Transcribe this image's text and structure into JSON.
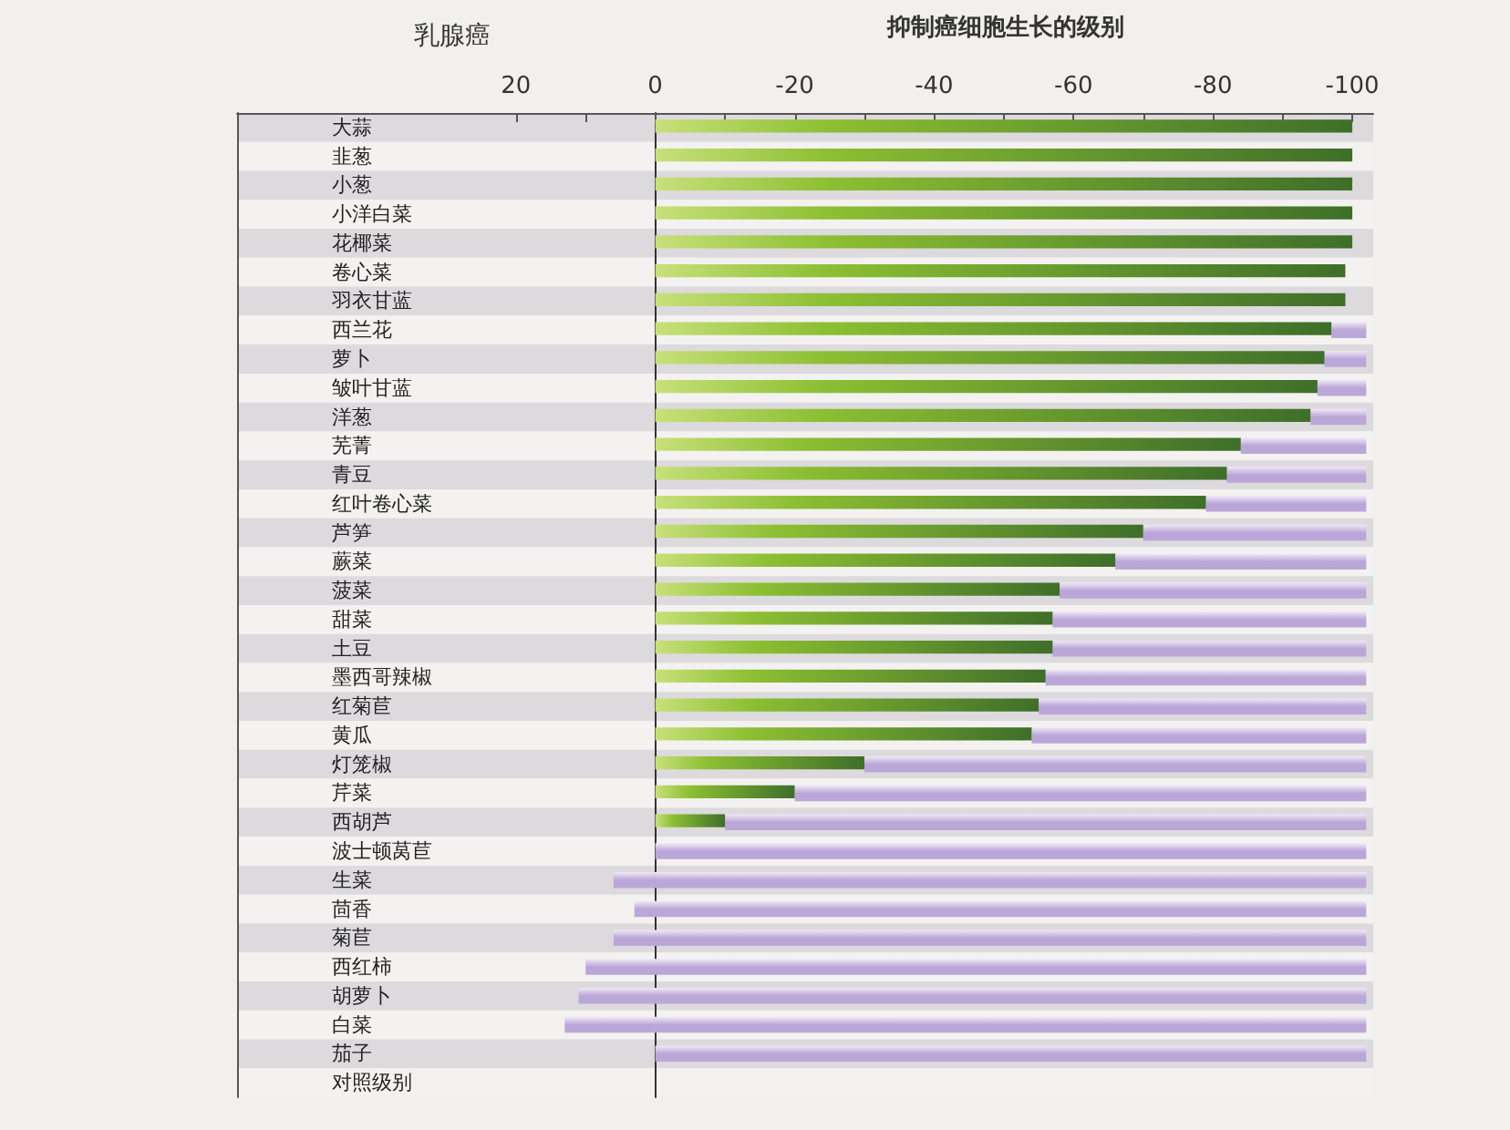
{
  "chart_data": {
    "type": "bar",
    "orientation": "horizontal",
    "title": "乳腺癌",
    "xlabel": "抑制癌细胞生长的级别",
    "categories": [
      "大蒜",
      "韭葱",
      "小葱",
      "小洋白菜",
      "花椰菜",
      "卷心菜",
      "羽衣甘蓝",
      "西兰花",
      "萝卜",
      "皱叶甘蓝",
      "洋葱",
      "芜菁",
      "青豆",
      "红叶卷心菜",
      "芦笋",
      "蕨菜",
      "菠菜",
      "甜菜",
      "土豆",
      "墨西哥辣椒",
      "红菊苣",
      "黄瓜",
      "灯笼椒",
      "芹菜",
      "西胡芦",
      "波士顿莴苣",
      "生菜",
      "茴香",
      "菊苣",
      "西红柿",
      "胡萝卜",
      "白菜",
      "茄子",
      "对照级别"
    ],
    "series": [
      {
        "color": "#3f6e2a",
        "values": [
          -100,
          -100,
          -100,
          -100,
          -100,
          -99,
          -99,
          -97,
          -96,
          -95,
          -94,
          -84,
          -82,
          -79,
          -70,
          -66,
          -58,
          -57,
          -57,
          -56,
          -55,
          -54,
          -30,
          -20,
          -10,
          null,
          null,
          null,
          null,
          null,
          null,
          null,
          null,
          null
        ]
      },
      {
        "color": "#bba6d8",
        "base": [
          null,
          null,
          null,
          null,
          null,
          null,
          null,
          -97,
          -96,
          -95,
          -94,
          -84,
          -82,
          -79,
          -70,
          -66,
          -58,
          -57,
          -57,
          -56,
          -55,
          -54,
          -30,
          -20,
          -10,
          0,
          6,
          3,
          6,
          10,
          11,
          13,
          0,
          null
        ],
        "values": [
          null,
          null,
          null,
          null,
          null,
          null,
          null,
          -5,
          -6,
          -7,
          -8,
          -18,
          -20,
          -23,
          -32,
          -36,
          -44,
          -45,
          -45,
          -46,
          -47,
          -48,
          -72,
          -82,
          -92,
          -102,
          -108,
          -105,
          -108,
          -112,
          -113,
          -115,
          -102,
          null
        ]
      }
    ],
    "xlim": [
      60,
      -103
    ],
    "xticks": [
      {
        "value": 20,
        "label": "20"
      },
      {
        "value": 10,
        "label": null
      },
      0,
      {
        "value": -10,
        "label": null
      },
      -20,
      {
        "value": -30,
        "label": null
      },
      -40,
      {
        "value": -50,
        "label": null
      },
      -60,
      {
        "value": -70,
        "label": null
      },
      -80,
      {
        "value": -90,
        "label": null
      },
      {
        "value": -100,
        "label": "-100"
      }
    ]
  }
}
